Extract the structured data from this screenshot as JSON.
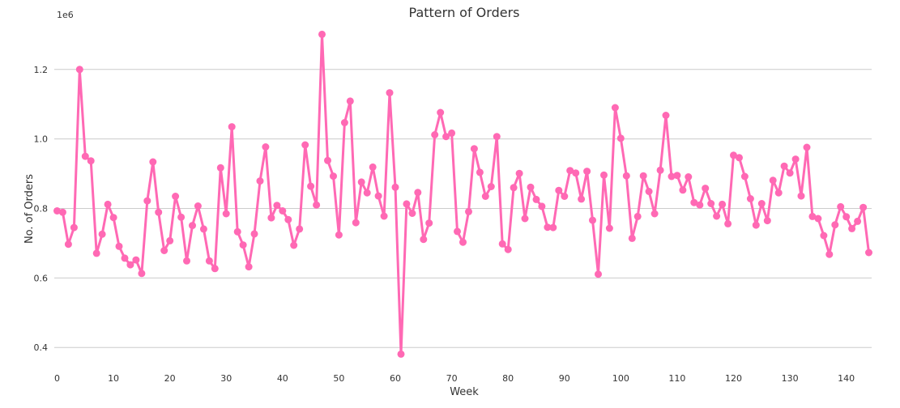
{
  "chart_data": {
    "type": "line",
    "title": "Pattern of Orders",
    "xlabel": "Week",
    "ylabel": "No. of Orders",
    "offset_label": "1e6",
    "xlim": [
      -0.5,
      144.5
    ],
    "ylim": [
      0.34,
      1.33
    ],
    "xticks": [
      0,
      10,
      20,
      30,
      40,
      50,
      60,
      70,
      80,
      90,
      100,
      110,
      120,
      130,
      140
    ],
    "yticks": [
      0.4,
      0.6,
      0.8,
      1.0,
      1.2
    ],
    "ytick_labels": [
      "0.4",
      "0.6",
      "0.8",
      "1.0",
      "1.2"
    ],
    "grid": "horizontal",
    "color": "#ff69b4",
    "x": [
      0,
      1,
      2,
      3,
      4,
      5,
      6,
      7,
      8,
      9,
      10,
      11,
      12,
      13,
      14,
      15,
      16,
      17,
      18,
      19,
      20,
      21,
      22,
      23,
      24,
      25,
      26,
      27,
      28,
      29,
      30,
      31,
      32,
      33,
      34,
      35,
      36,
      37,
      38,
      39,
      40,
      41,
      42,
      43,
      44,
      45,
      46,
      47,
      48,
      49,
      50,
      51,
      52,
      53,
      54,
      55,
      56,
      57,
      58,
      59,
      60,
      61,
      62,
      63,
      64,
      65,
      66,
      67,
      68,
      69,
      70,
      71,
      72,
      73,
      74,
      75,
      76,
      77,
      78,
      79,
      80,
      81,
      82,
      83,
      84,
      85,
      86,
      87,
      88,
      89,
      90,
      91,
      92,
      93,
      94,
      95,
      96,
      97,
      98,
      99,
      100,
      101,
      102,
      103,
      104,
      105,
      106,
      107,
      108,
      109,
      110,
      111,
      112,
      113,
      114,
      115,
      116,
      117,
      118,
      119,
      120,
      121,
      122,
      123,
      124,
      125,
      126,
      127,
      128,
      129,
      130,
      131,
      132,
      133,
      134,
      135,
      136,
      137,
      138,
      139,
      140,
      141,
      142,
      143,
      144
    ],
    "values": [
      0.793,
      0.789,
      0.697,
      0.745,
      1.2,
      0.95,
      0.937,
      0.671,
      0.726,
      0.812,
      0.774,
      0.691,
      0.657,
      0.638,
      0.652,
      0.613,
      0.822,
      0.934,
      0.789,
      0.679,
      0.707,
      0.835,
      0.775,
      0.649,
      0.751,
      0.807,
      0.741,
      0.649,
      0.627,
      0.917,
      0.785,
      1.035,
      0.733,
      0.695,
      0.632,
      0.727,
      0.879,
      0.977,
      0.773,
      0.809,
      0.793,
      0.768,
      0.694,
      0.741,
      0.983,
      0.864,
      0.81,
      1.301,
      0.938,
      0.893,
      0.724,
      1.047,
      1.109,
      0.759,
      0.876,
      0.845,
      0.919,
      0.836,
      0.778,
      1.133,
      0.861,
      0.381,
      0.813,
      0.786,
      0.846,
      0.711,
      0.758,
      1.012,
      1.076,
      1.007,
      1.017,
      0.734,
      0.703,
      0.791,
      0.972,
      0.904,
      0.835,
      0.863,
      1.007,
      0.698,
      0.682,
      0.86,
      0.901,
      0.771,
      0.861,
      0.826,
      0.806,
      0.746,
      0.745,
      0.852,
      0.835,
      0.909,
      0.902,
      0.827,
      0.907,
      0.766,
      0.611,
      0.896,
      0.743,
      1.09,
      1.002,
      0.894,
      0.714,
      0.777,
      0.894,
      0.849,
      0.785,
      0.91,
      1.068,
      0.892,
      0.895,
      0.853,
      0.891,
      0.817,
      0.81,
      0.858,
      0.814,
      0.778,
      0.812,
      0.756,
      0.953,
      0.946,
      0.892,
      0.828,
      0.752,
      0.814,
      0.765,
      0.881,
      0.845,
      0.922,
      0.902,
      0.942,
      0.836,
      0.976,
      0.777,
      0.771,
      0.722,
      0.668,
      0.753,
      0.805,
      0.776,
      0.742,
      0.763,
      0.803,
      0.673
    ]
  }
}
